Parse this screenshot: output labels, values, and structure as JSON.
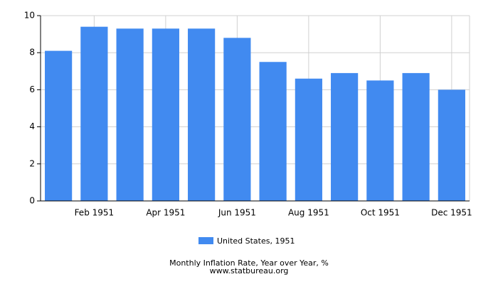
{
  "chart_data": {
    "type": "bar",
    "title": "Monthly Inflation Rate, Year over Year, %",
    "subtitle": "www.statbureau.org",
    "categories": [
      null,
      "Feb 1951",
      null,
      "Apr 1951",
      null,
      "Jun 1951",
      null,
      "Aug 1951",
      null,
      "Oct 1951",
      null,
      "Dec 1951"
    ],
    "series": [
      {
        "name": "United States, 1951",
        "color": "#418af0",
        "values": [
          8.1,
          9.4,
          9.3,
          9.3,
          9.3,
          8.8,
          7.5,
          6.6,
          6.9,
          6.5,
          6.9,
          6.0
        ]
      }
    ],
    "ylim": [
      0,
      10
    ],
    "yticks": [
      0,
      2,
      4,
      6,
      8,
      10
    ],
    "grid": true
  }
}
